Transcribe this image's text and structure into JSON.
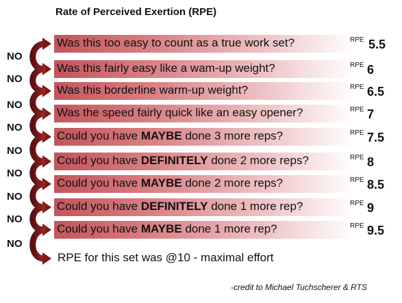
{
  "title": "Rate of Perceived Exertion (RPE)",
  "no_label": "NO",
  "rpe_prefix": "RPE",
  "rows": [
    {
      "pre": "Was this too easy to count as a true work set?",
      "bold": "",
      "post": "",
      "rpe": "5.5"
    },
    {
      "pre": "Was this fairly easy like a wam-up weight?",
      "bold": "",
      "post": "",
      "rpe": "6"
    },
    {
      "pre": "Was this borderline warm-up weight?",
      "bold": "",
      "post": "",
      "rpe": "6.5"
    },
    {
      "pre": "Was the speed fairly quick like an easy opener?",
      "bold": "",
      "post": "",
      "rpe": "7"
    },
    {
      "pre": "Could you have ",
      "bold": "MAYBE",
      "post": " done 3 more reps?",
      "rpe": "7.5"
    },
    {
      "pre": "Could you have ",
      "bold": "DEFINITELY",
      "post": " done 2 more reps?",
      "rpe": "8"
    },
    {
      "pre": "Could you have ",
      "bold": "MAYBE",
      "post": " done 2 more reps?",
      "rpe": "8.5"
    },
    {
      "pre": "Could you have ",
      "bold": "DEFINITELY",
      "post": " done 1 more rep?",
      "rpe": "9"
    },
    {
      "pre": "Could you have ",
      "bold": "MAYBE",
      "post": " done 1 more rep?",
      "rpe": "9.5"
    }
  ],
  "final": "RPE for this set was @10 - maximal effort",
  "credit": "-credit to Michael Tuchscherer & RTS",
  "colors": {
    "arrow": "#7a1a1a",
    "bar_dark": "#c2555b",
    "bar_light": "#ffffff"
  }
}
